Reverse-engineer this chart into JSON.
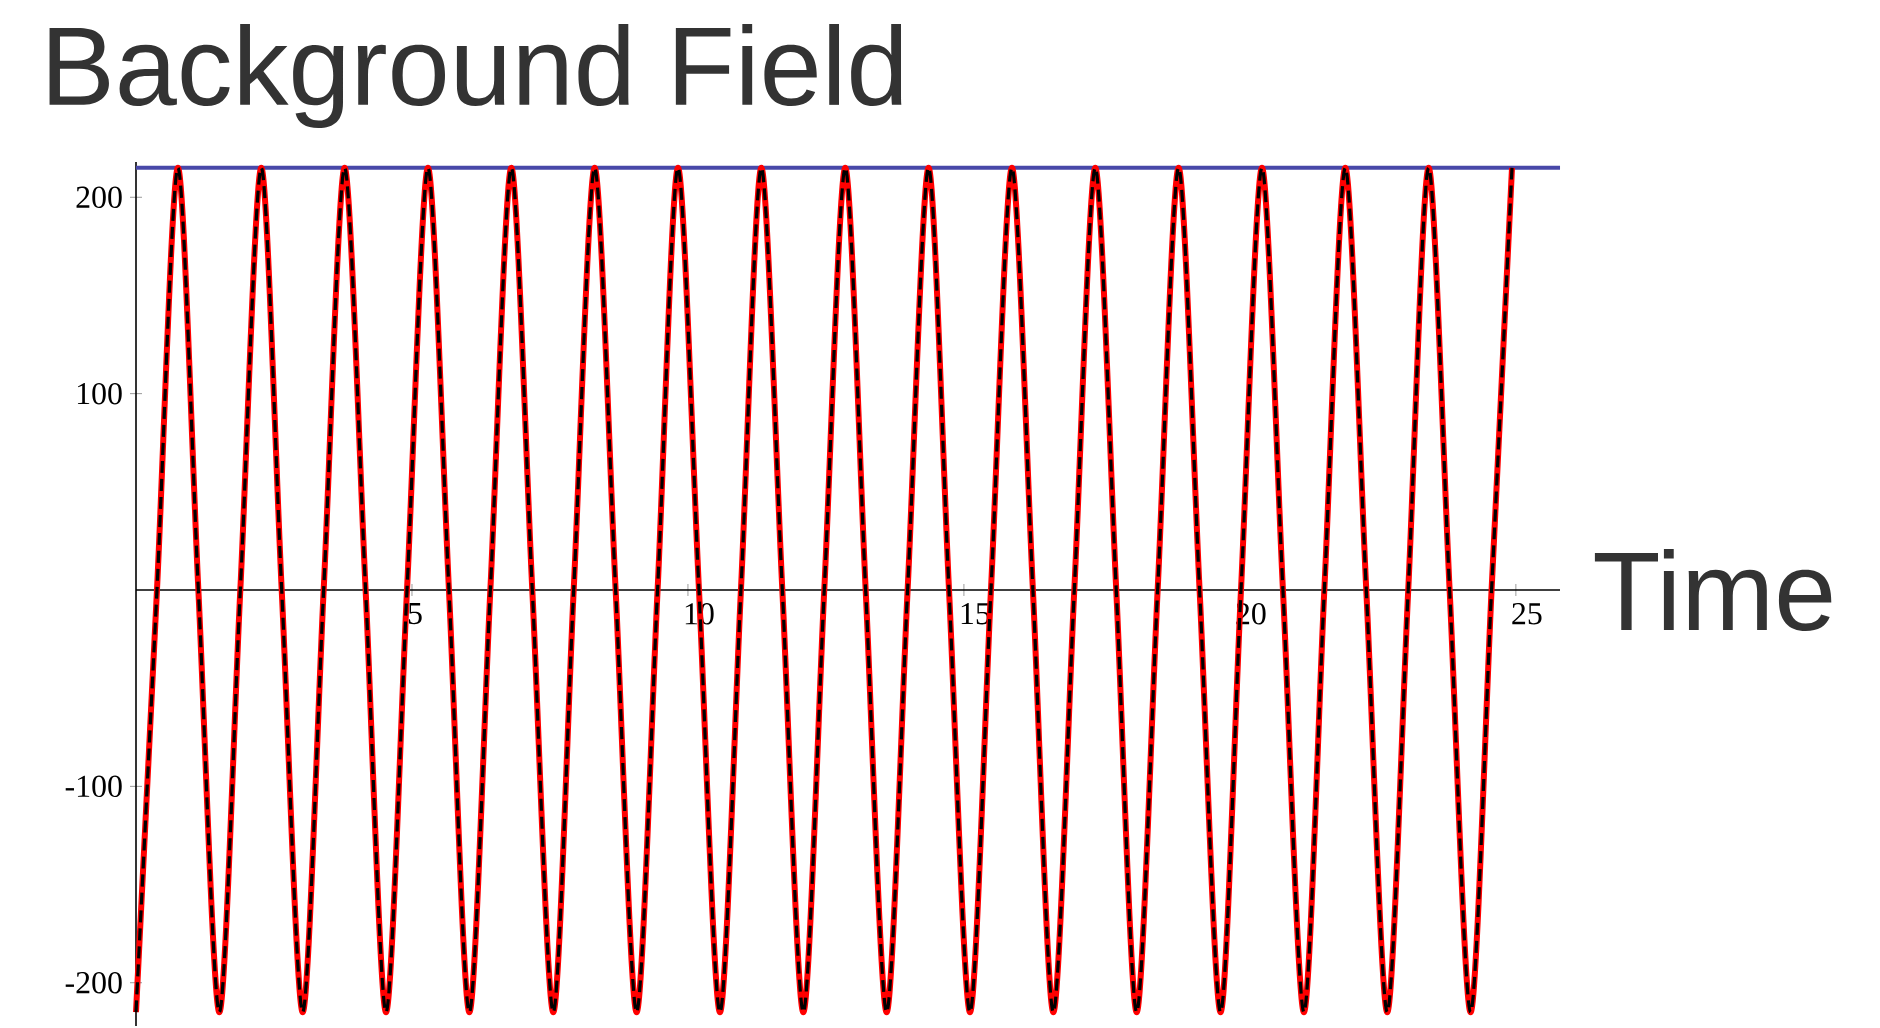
{
  "chart_data": {
    "type": "line",
    "title": "Background Field",
    "xlabel": "Time",
    "x": [
      0,
      0.38,
      0.76,
      1.13,
      1.51,
      1.89,
      2.27,
      2.64,
      3.02,
      3.4,
      3.78,
      4.16,
      4.53,
      4.91,
      5.29,
      5.67,
      6.04,
      6.42,
      6.8,
      7.18,
      7.56,
      7.93,
      8.31,
      8.69,
      9.07,
      9.45,
      9.82,
      10.2,
      10.58,
      10.96,
      11.33,
      11.71,
      12.09,
      12.47,
      12.85,
      13.22,
      13.6,
      13.98,
      14.36,
      14.73,
      15.11,
      15.49,
      15.87,
      16.25,
      16.62,
      17.0,
      17.38,
      17.76,
      18.13,
      18.51,
      18.89,
      19.27,
      19.65,
      20.02,
      20.4,
      20.78,
      21.16,
      21.53,
      21.91,
      22.29,
      22.67,
      23.05,
      23.42,
      23.8,
      24.18,
      24.56,
      24.93
    ],
    "series": [
      {
        "color": "#ff0000",
        "line_style": "solid",
        "values": [
          -215,
          0,
          215,
          0,
          -215,
          0,
          215,
          0,
          -215,
          0,
          215,
          0,
          -215,
          0,
          215,
          0,
          -215,
          0,
          215,
          0,
          -215,
          0,
          215,
          0,
          -215,
          0,
          215,
          0,
          -215,
          0,
          215,
          0,
          -215,
          0,
          215,
          0,
          -215,
          0,
          215,
          0,
          -215,
          0,
          215,
          0,
          -215,
          0,
          215,
          0,
          -215,
          0,
          215,
          0,
          -215,
          0,
          215,
          0,
          -215,
          0,
          215,
          0,
          -215,
          0,
          215,
          0,
          -215,
          0,
          215
        ]
      },
      {
        "color": "#000000",
        "line_style": "dashed",
        "values": [
          -215,
          0,
          215,
          0,
          -215,
          0,
          215,
          0,
          -215,
          0,
          215,
          0,
          -215,
          0,
          215,
          0,
          -215,
          0,
          215,
          0,
          -215,
          0,
          215,
          0,
          -215,
          0,
          215,
          0,
          -215,
          0,
          215,
          0,
          -215,
          0,
          215,
          0,
          -215,
          0,
          215,
          0,
          -215,
          0,
          215,
          0,
          -215,
          0,
          215,
          0,
          -215,
          0,
          215,
          0,
          -215,
          0,
          215,
          0,
          -215,
          0,
          215,
          0,
          -215,
          0,
          215,
          0,
          -215,
          0,
          215
        ]
      }
    ],
    "xlim": [
      0,
      25.8
    ],
    "ylim": [
      -222,
      218
    ],
    "xticks": [
      5,
      10,
      15,
      20,
      25
    ],
    "yticks": [
      -200,
      -100,
      100,
      200
    ],
    "ref_lines": [
      {
        "axis": "y",
        "value": 215,
        "color": "#4848a8"
      }
    ],
    "marker": "none"
  }
}
